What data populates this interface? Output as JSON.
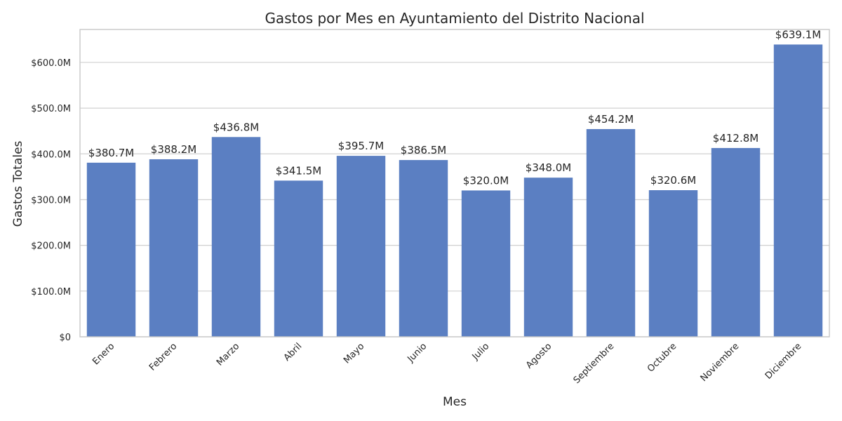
{
  "chart_data": {
    "type": "bar",
    "title": "Gastos por Mes en Ayuntamiento del Distrito Nacional",
    "xlabel": "Mes",
    "ylabel": "Gastos Totales",
    "categories": [
      "Enero",
      "Febrero",
      "Marzo",
      "Abril",
      "Mayo",
      "Junio",
      "Julio",
      "Agosto",
      "Septiembre",
      "Octubre",
      "Noviembre",
      "Diciembre"
    ],
    "values": [
      380.7,
      388.2,
      436.8,
      341.5,
      395.7,
      386.5,
      320.0,
      348.0,
      454.2,
      320.6,
      412.8,
      639.1
    ],
    "value_labels": [
      "$380.7M",
      "$388.2M",
      "$436.8M",
      "$341.5M",
      "$395.7M",
      "$386.5M",
      "$320.0M",
      "$348.0M",
      "$454.2M",
      "$320.6M",
      "$412.8M",
      "$639.1M"
    ],
    "ylim": [
      0,
      672
    ],
    "yticks": [
      0,
      100,
      200,
      300,
      400,
      500,
      600
    ],
    "ytick_labels": [
      "$0",
      "$100.0M",
      "$200.0M",
      "$300.0M",
      "$400.0M",
      "$500.0M",
      "$600.0M"
    ],
    "grid": "horizontal",
    "bar_color": "#5b7fc2"
  }
}
